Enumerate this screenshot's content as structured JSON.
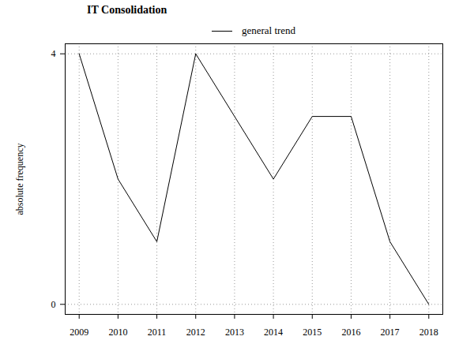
{
  "chart_data": {
    "type": "line",
    "title": "IT Consolidation",
    "y_label": "absolute frequency",
    "x": [
      2009,
      2010,
      2011,
      2012,
      2013,
      2014,
      2015,
      2016,
      2017,
      2018
    ],
    "series": [
      {
        "name": "general trend",
        "color": "#000000",
        "values": [
          4,
          2,
          1,
          4,
          3,
          2,
          3,
          3,
          1,
          0
        ]
      }
    ],
    "xlim": [
      2008.64,
      2018.36
    ],
    "xticks": [
      2009,
      2010,
      2011,
      2012,
      2013,
      2014,
      2015,
      2016,
      2017,
      2018
    ],
    "ylim": [
      -0.16,
      4.16
    ],
    "yticks": [
      0,
      4
    ],
    "grid": true,
    "legend": "top"
  }
}
